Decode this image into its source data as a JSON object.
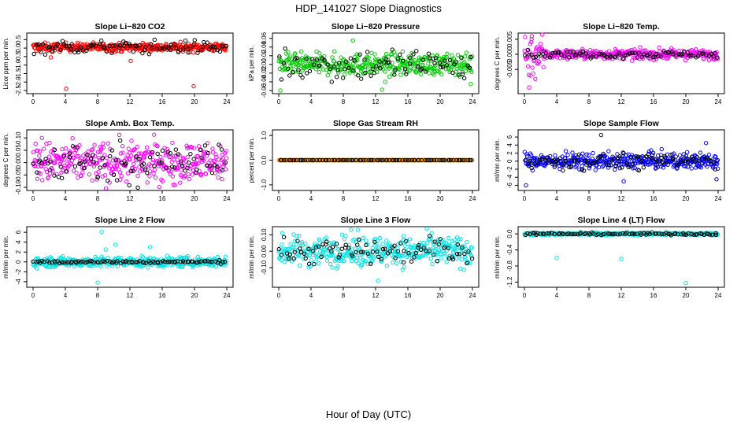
{
  "figure": {
    "title": "HDP_141027  Slope Diagnostics",
    "xlabel": "Hour of Day (UTC)"
  },
  "chart_data": [
    {
      "type": "scatter",
      "title": "Slope Li−820 CO2",
      "ylabel": "Licor ppm per min.",
      "xlim": [
        0,
        24
      ],
      "ylim": [
        -2.5,
        0.7
      ],
      "xticks": [
        0,
        4,
        8,
        12,
        16,
        20,
        24
      ],
      "yticks": [
        0.5,
        0.0,
        -0.5,
        -1.0,
        -1.5,
        -2.0,
        -2.5
      ],
      "ytick_labels": [
        "0.5",
        "0.0",
        "-0.5",
        "-1.0",
        "-1.5",
        "-2.0",
        "-2.5"
      ],
      "color": "#ff0000",
      "center": 0.05,
      "spread": 0.12,
      "black_spread": 0.2,
      "outliers": [
        {
          "x": 4.1,
          "y": -2.4
        },
        {
          "x": 12.1,
          "y": -0.75
        },
        {
          "x": 19.9,
          "y": -2.25
        },
        {
          "x": 2.2,
          "y": -0.55
        }
      ]
    },
    {
      "type": "scatter",
      "title": "Slope Li−820 Pressure",
      "ylabel": "kPa per min.",
      "xlim": [
        0,
        24
      ],
      "ylim": [
        -0.06,
        0.065
      ],
      "xticks": [
        0,
        4,
        8,
        12,
        16,
        20,
        24
      ],
      "yticks": [
        0.06,
        0.04,
        0.02,
        0.0,
        -0.02,
        -0.04,
        -0.06
      ],
      "ytick_labels": [
        "0.06",
        "0.04",
        "0.02",
        "0.00",
        "-0.02",
        "-0.04",
        "-0.06"
      ],
      "color": "#00cc00",
      "center": 0.0,
      "spread": 0.012,
      "black_spread": 0.02,
      "outliers": [
        {
          "x": 0.2,
          "y": -0.06
        },
        {
          "x": 12.8,
          "y": -0.058
        },
        {
          "x": 13.2,
          "y": -0.04
        },
        {
          "x": 9.2,
          "y": 0.055
        },
        {
          "x": 23.8,
          "y": -0.045
        }
      ]
    },
    {
      "type": "scatter",
      "title": "Slope Li−820 Temp.",
      "ylabel": "degrees C per min.",
      "xlim": [
        0,
        24
      ],
      "ylim": [
        -0.012,
        0.006
      ],
      "xticks": [
        0,
        4,
        8,
        12,
        16,
        20,
        24
      ],
      "yticks": [
        0.005,
        0.0,
        -0.005
      ],
      "ytick_labels": [
        "0.005",
        "0.000",
        "-0.005"
      ],
      "color": "#ff00ff",
      "center": 0.0,
      "spread": 0.0008,
      "black_spread": 0.0006,
      "early_spread": 0.004,
      "outliers": [
        {
          "x": 0.6,
          "y": -0.011
        },
        {
          "x": 0.9,
          "y": 0.005
        }
      ]
    },
    {
      "type": "scatter",
      "title": "Slope Amb. Box Temp.",
      "ylabel": "degrees C per min.",
      "xlim": [
        0,
        24
      ],
      "ylim": [
        -0.1,
        0.12
      ],
      "xticks": [
        0,
        4,
        8,
        12,
        16,
        20,
        24
      ],
      "yticks": [
        0.1,
        0.05,
        0.0,
        -0.05,
        -0.1
      ],
      "ytick_labels": [
        "0.10",
        "0.05",
        "0.00",
        "-0.05",
        "-0.10"
      ],
      "color": "#ff00ff",
      "center": 0.0,
      "spread": 0.04,
      "black_spread": 0.04,
      "outliers": [
        {
          "x": 1.1,
          "y": 0.1
        }
      ]
    },
    {
      "type": "scatter",
      "title": "Slope Gas Stream RH",
      "ylabel": "percent per min.",
      "xlim": [
        0,
        24
      ],
      "ylim": [
        -1.1,
        1.1
      ],
      "xticks": [
        0,
        4,
        8,
        12,
        16,
        20,
        24
      ],
      "yticks": [
        1.0,
        0.0,
        -1.0
      ],
      "ytick_labels": [
        "1.0",
        "0.0",
        "-1.0"
      ],
      "color": "#ff9900",
      "center": 0.0,
      "spread": 0.0,
      "black_spread": 0.0,
      "outliers": []
    },
    {
      "type": "scatter",
      "title": "Slope Sample Flow",
      "ylabel": "ml/min per min.",
      "xlim": [
        0,
        24
      ],
      "ylim": [
        -6.5,
        7
      ],
      "xticks": [
        0,
        4,
        8,
        12,
        16,
        20,
        24
      ],
      "yticks": [
        6,
        4,
        2,
        0,
        -2,
        -4,
        -6
      ],
      "ytick_labels": [
        "6",
        "4",
        "2",
        "0",
        "-2",
        "-4",
        "-6"
      ],
      "color": "#0000ff",
      "center": 0.0,
      "spread": 1.0,
      "black_spread": 1.0,
      "outliers": [
        {
          "x": 0.2,
          "y": -6
        },
        {
          "x": 9.5,
          "y": 6.5
        },
        {
          "x": 12.3,
          "y": -5
        },
        {
          "x": 23.8,
          "y": -4.5
        },
        {
          "x": 22.5,
          "y": 4.5
        }
      ]
    },
    {
      "type": "scatter",
      "title": "Slope Line 2 Flow",
      "ylabel": "ml/min per min.",
      "xlim": [
        0,
        24
      ],
      "ylim": [
        -4.5,
        6.5
      ],
      "xticks": [
        0,
        4,
        8,
        12,
        16,
        20,
        24
      ],
      "yticks": [
        6,
        4,
        2,
        0,
        -2,
        -4
      ],
      "ytick_labels": [
        "6",
        "4",
        "2",
        "0",
        "-2",
        "-4"
      ],
      "color": "#00e5e5",
      "center": 0.0,
      "spread": 0.5,
      "black_spread": 0.15,
      "outliers": [
        {
          "x": 8.5,
          "y": 6.1
        },
        {
          "x": 8.0,
          "y": -4.2
        },
        {
          "x": 10.2,
          "y": 3.5
        },
        {
          "x": 9.0,
          "y": 2.5
        },
        {
          "x": 14.5,
          "y": 3.0
        }
      ]
    },
    {
      "type": "scatter",
      "title": "Slope Line 3 Flow",
      "ylabel": "ml/min per min.",
      "xlim": [
        0,
        24
      ],
      "ylim": [
        -0.2,
        0.13
      ],
      "xticks": [
        0,
        4,
        8,
        12,
        16,
        20,
        24
      ],
      "yticks": [
        0.1,
        0.0,
        -0.1
      ],
      "ytick_labels": [
        "0.10",
        "0.00",
        "-0.10"
      ],
      "color": "#00e5e5",
      "center": 0.0,
      "spread": 0.045,
      "black_spread": 0.04,
      "outliers": [
        {
          "x": 12.3,
          "y": -0.18
        },
        {
          "x": 9.8,
          "y": 0.13
        }
      ]
    },
    {
      "type": "scatter",
      "title": "Slope Line 4 (LT) Flow",
      "ylabel": "ml/min per min.",
      "xlim": [
        0,
        24
      ],
      "ylim": [
        -1.25,
        0.1
      ],
      "xticks": [
        0,
        4,
        8,
        12,
        16,
        20,
        24
      ],
      "yticks": [
        0.0,
        -0.4,
        -0.8,
        -1.2
      ],
      "ytick_labels": [
        "0.0",
        "-0.4",
        "-0.8",
        "-1.2"
      ],
      "color": "#00e5e5",
      "center": 0.0,
      "spread": 0.015,
      "black_spread": 0.015,
      "outliers": [
        {
          "x": 4.0,
          "y": -0.6
        },
        {
          "x": 12.0,
          "y": -0.62
        },
        {
          "x": 20.0,
          "y": -1.22
        }
      ]
    }
  ]
}
